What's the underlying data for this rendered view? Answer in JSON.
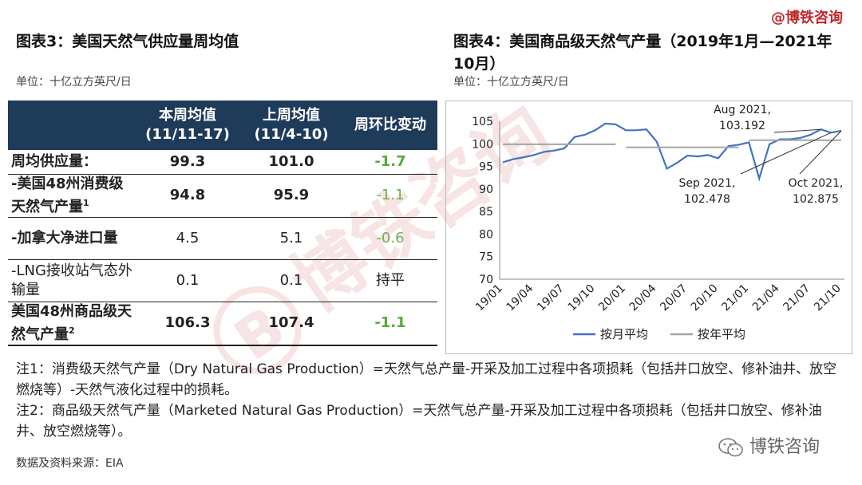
{
  "brand": "@博铁咨询",
  "left": {
    "title": "图表3：美国天然气供应量周均值",
    "unit": "单位：十亿立方英尺/日",
    "headers": [
      "",
      "本周均值\n(11/11-17)",
      "上周均值\n(11/4-10)",
      "周环比变动"
    ],
    "rows": [
      {
        "label": "周均供应量：",
        "cur": "99.3",
        "prev": "101.0",
        "chg": "-1.7",
        "bold": true
      },
      {
        "label": "-美国48州消费级天然气产量",
        "sup": "1",
        "cur": "94.8",
        "prev": "95.9",
        "chg": "-1.1",
        "bold": true
      },
      {
        "label": "-加拿大净进口量",
        "cur": "4.5",
        "prev": "5.1",
        "chg": "-0.6",
        "bold": true
      },
      {
        "label": "-LNG接收站气态外输量",
        "cur": "0.1",
        "prev": "0.1",
        "chg": "持平",
        "bold": false
      },
      {
        "label": "美国48州商品级天然气产量",
        "sup": "2",
        "cur": "106.3",
        "prev": "107.4",
        "chg": "-1.1",
        "bold": true
      }
    ]
  },
  "right": {
    "title": "图表4：美国商品级天然气产量（2019年1月—2021年10月）",
    "unit": "单位：十亿立方英尺/日"
  },
  "notes": [
    "注1：消费级天然气产量（Dry Natural Gas Production）=天然气总产量-开采及加工过程中各项损耗（包括井口放空、修补油井、放空燃烧等）-天然气液化过程中的损耗。",
    "注2：商品级天然气产量（Marketed Natural Gas Production）=天然气总产量-开采及加工过程中各项损耗（包括井口放空、修补油井、放空燃烧等）。"
  ],
  "source": "数据及资料来源：EIA",
  "watermark_bottom": "博铁咨询",
  "chart_data": {
    "type": "line",
    "title": "图表4：美国商品级天然气产量（2019年1月—2021年10月）",
    "ylabel": "十亿立方英尺/日",
    "ylim": [
      70,
      105
    ],
    "yticks": [
      70,
      75,
      80,
      85,
      90,
      95,
      100,
      105
    ],
    "x": [
      "19/01",
      "19/02",
      "19/03",
      "19/04",
      "19/05",
      "19/06",
      "19/07",
      "19/08",
      "19/09",
      "19/10",
      "19/11",
      "19/12",
      "20/01",
      "20/02",
      "20/03",
      "20/04",
      "20/05",
      "20/06",
      "20/07",
      "20/08",
      "20/09",
      "20/10",
      "20/11",
      "20/12",
      "21/01",
      "21/02",
      "21/03",
      "21/04",
      "21/05",
      "21/06",
      "21/07",
      "21/08",
      "21/09",
      "21/10"
    ],
    "xtick_labels": [
      "19/01",
      "19/04",
      "19/07",
      "19/10",
      "20/01",
      "20/04",
      "20/07",
      "20/10",
      "21/01",
      "21/04",
      "21/07",
      "21/10"
    ],
    "series": [
      {
        "name": "按月平均",
        "color": "#4472c4",
        "values": [
          95.9,
          96.6,
          97.0,
          97.5,
          98.2,
          98.5,
          99.0,
          101.5,
          102.0,
          103.0,
          104.5,
          104.3,
          103.0,
          103.0,
          103.2,
          100.5,
          94.5,
          95.8,
          97.4,
          97.2,
          97.5,
          96.8,
          99.5,
          99.8,
          100.3,
          92.3,
          99.9,
          101.0,
          101.0,
          101.3,
          102.0,
          103.192,
          102.478,
          102.875
        ]
      },
      {
        "name": "按年平均",
        "color": "#a5a5a5",
        "values": [
          99.9,
          99.9,
          99.9,
          99.9,
          99.9,
          99.9,
          99.9,
          99.9,
          99.9,
          99.9,
          99.9,
          99.9,
          99.2,
          99.2,
          99.2,
          99.2,
          99.2,
          99.2,
          99.2,
          99.2,
          99.2,
          99.2,
          99.2,
          99.2,
          100.8,
          100.8,
          100.8,
          100.8,
          100.8,
          100.8,
          100.8,
          100.8,
          100.8,
          100.8
        ]
      }
    ],
    "annotations": [
      {
        "label": "Aug 2021,\n103.192",
        "x": "21/08"
      },
      {
        "label": "Sep 2021,\n102.478",
        "x": "21/09"
      },
      {
        "label": "Oct 2021,\n102.875",
        "x": "21/10"
      }
    ]
  }
}
